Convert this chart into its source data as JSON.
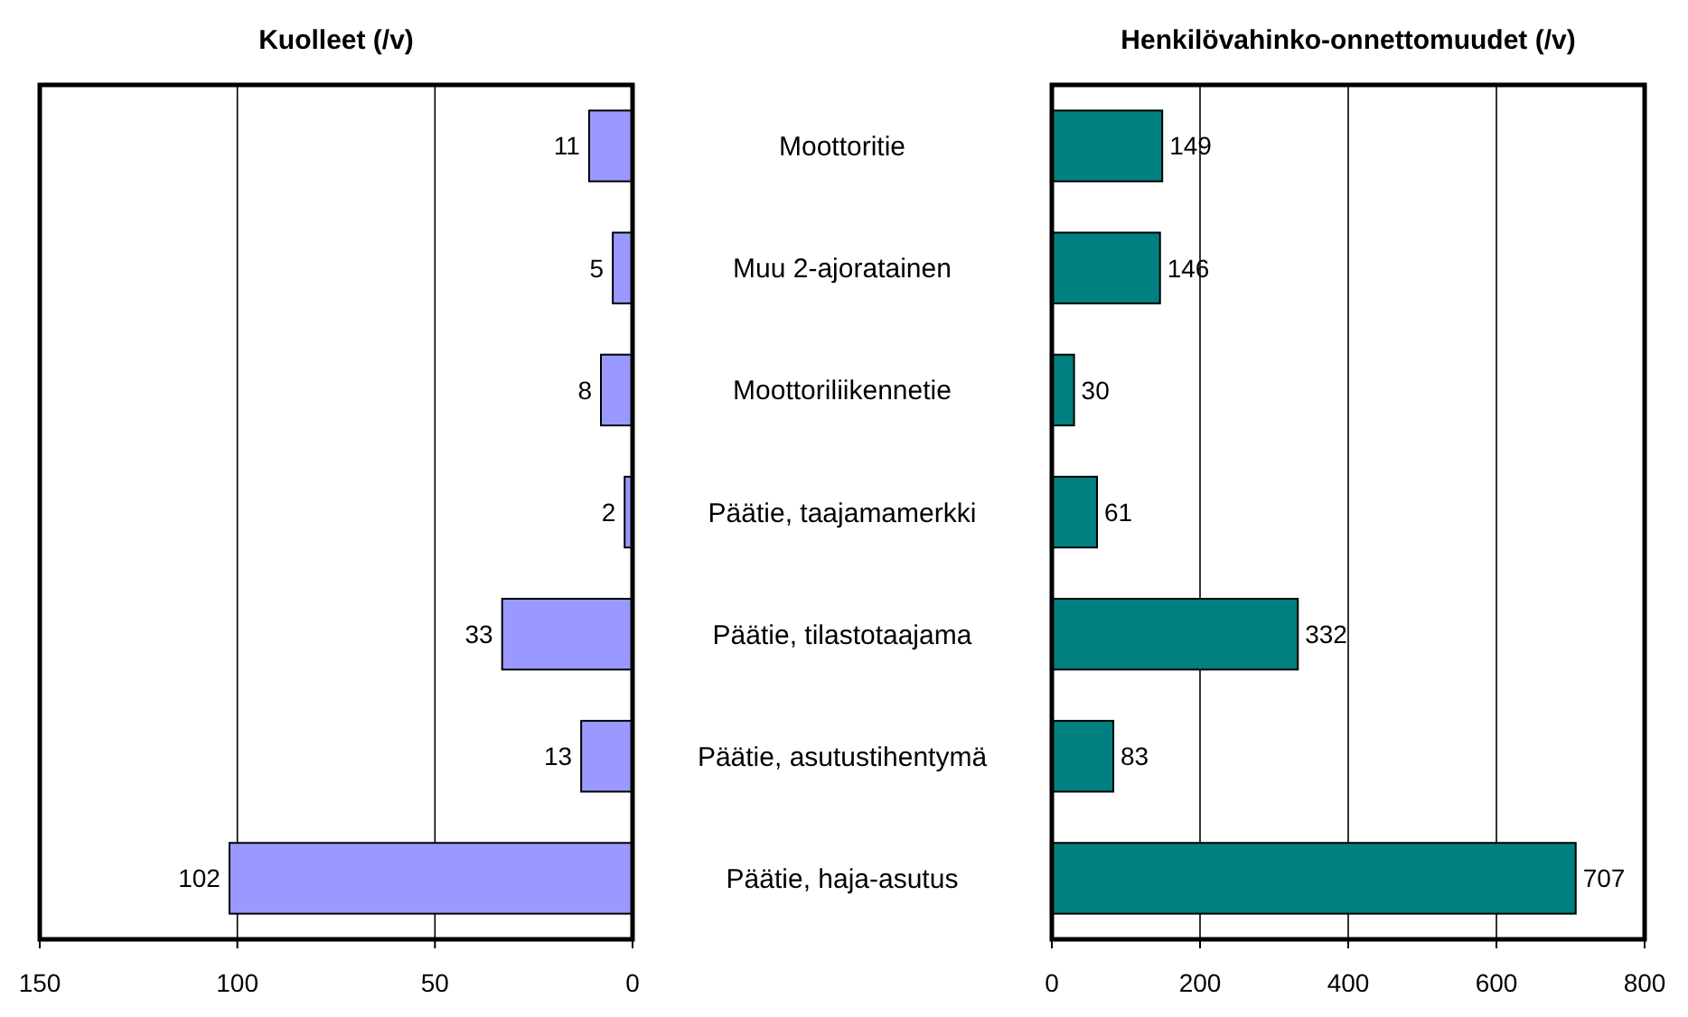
{
  "chart_data": [
    {
      "type": "bar",
      "orientation": "horizontal",
      "title": "Kuolleet (/v)",
      "categories": [
        "Moottoritie",
        "Muu 2-ajoratainen",
        "Moottoriliikennetie",
        "Päätie, taajamamerkki",
        "Päätie, tilastotaajama",
        "Päätie, asutustihentymä",
        "Päätie, haja-asutus"
      ],
      "values": [
        11,
        5,
        8,
        2,
        33,
        13,
        102
      ],
      "color": "#9999ff",
      "xlim": [
        150,
        0
      ],
      "xticks": [
        150,
        100,
        50,
        0
      ],
      "grid": "x",
      "data_labels": true
    },
    {
      "type": "bar",
      "orientation": "horizontal",
      "title": "Henkilövahinko-onnettomuudet (/v)",
      "categories": [
        null,
        null,
        null,
        null,
        null,
        null,
        null
      ],
      "values": [
        149,
        146,
        30,
        61,
        332,
        83,
        707
      ],
      "color": "#008080",
      "xlim": [
        0,
        800
      ],
      "xticks": [
        0,
        200,
        400,
        600,
        800
      ],
      "grid": "x",
      "data_labels": true
    }
  ]
}
